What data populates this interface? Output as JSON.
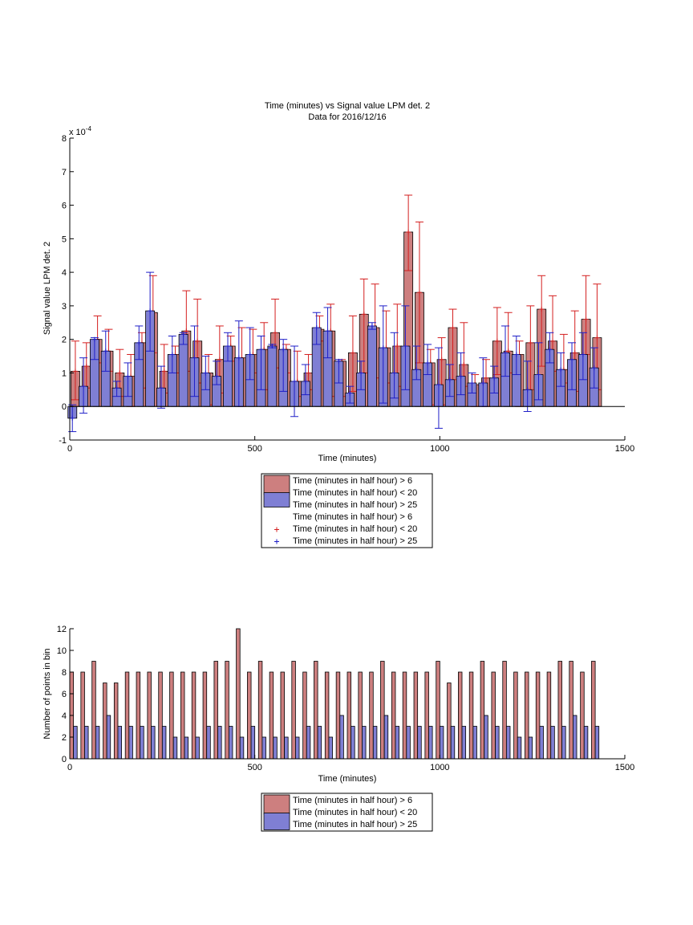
{
  "colors": {
    "red_fill": "#cd7f7f",
    "blue_fill": "#7f7fd4",
    "red_line": "#d41f1f",
    "blue_line": "#1f1fc8",
    "axis": "#000000"
  },
  "chart_data": [
    {
      "type": "bar",
      "title": "Time (minutes) vs Signal value LPM det. 2",
      "subtitle": "Data for 2016/12/16",
      "xlabel": "Time (minutes)",
      "ylabel": "Signal value LPM det. 2",
      "y_multiplier": "x 10",
      "y_exponent": "-4",
      "xlim": [
        0,
        1500
      ],
      "ylim": [
        -1,
        8
      ],
      "xticks": [
        0,
        500,
        1000,
        1500
      ],
      "yticks": [
        -1,
        0,
        1,
        2,
        3,
        4,
        5,
        6,
        7,
        8
      ],
      "grid": false,
      "legend_position": "bottom",
      "legend": [
        "Time (minutes in half hour) > 6",
        "Time (minutes in half hour) < 20",
        "Time (minutes in half hour) > 25",
        "Time (minutes in half hour) > 6",
        "Time (minutes in half hour) < 20",
        "Time (minutes in half hour) > 25"
      ],
      "red_x": [
        15,
        45,
        75,
        105,
        135,
        165,
        195,
        225,
        255,
        285,
        315,
        345,
        375,
        405,
        435,
        465,
        495,
        525,
        555,
        585,
        615,
        645,
        675,
        705,
        735,
        765,
        795,
        825,
        855,
        885,
        915,
        945,
        975,
        1005,
        1035,
        1065,
        1095,
        1125,
        1155,
        1185,
        1215,
        1245,
        1275,
        1305,
        1335,
        1365,
        1395,
        1425
      ],
      "red_values": [
        1.05,
        1.2,
        2.0,
        1.65,
        1.0,
        0.9,
        1.9,
        2.8,
        1.05,
        1.55,
        2.25,
        1.95,
        1.0,
        1.4,
        1.8,
        1.45,
        1.55,
        1.7,
        2.2,
        1.7,
        0.75,
        1.0,
        2.3,
        2.25,
        1.35,
        1.6,
        2.75,
        2.35,
        1.75,
        1.8,
        5.2,
        3.4,
        1.3,
        1.4,
        2.35,
        1.25,
        0.65,
        0.85,
        1.95,
        1.65,
        1.55,
        1.9,
        2.9,
        1.95,
        1.1,
        1.6,
        2.6,
        2.05
      ],
      "red_err_low": [
        0.2,
        0.55,
        1.3,
        1.05,
        0.3,
        0.0,
        0.55,
        1.6,
        0.4,
        1.0,
        1.05,
        0.7,
        0.05,
        0.4,
        1.35,
        0.0,
        1.0,
        0.5,
        1.15,
        1.0,
        0.3,
        0.5,
        1.95,
        0.3,
        0.3,
        0.45,
        1.0,
        0.85,
        0.7,
        0.6,
        4.05,
        1.3,
        0.05,
        0.05,
        0.8,
        0.6,
        0.0,
        0.0,
        0.95,
        1.0,
        0.0,
        0.5,
        1.2,
        1.05,
        0.7,
        0.45,
        1.55,
        0.5
      ],
      "red_err_high": [
        1.95,
        1.9,
        2.7,
        2.3,
        1.7,
        1.55,
        2.2,
        3.9,
        1.85,
        1.8,
        3.45,
        3.2,
        1.55,
        2.4,
        2.1,
        2.35,
        2.3,
        2.5,
        3.2,
        1.85,
        1.65,
        1.55,
        2.7,
        3.05,
        1.4,
        2.7,
        3.8,
        3.65,
        2.85,
        3.05,
        6.3,
        5.5,
        1.7,
        2.05,
        2.9,
        2.5,
        0.95,
        1.4,
        2.95,
        2.8,
        1.95,
        3.0,
        3.9,
        3.3,
        2.15,
        2.85,
        3.9,
        3.65
      ],
      "blue_x": [
        7,
        37,
        67,
        97,
        127,
        157,
        187,
        217,
        247,
        277,
        307,
        337,
        367,
        397,
        427,
        457,
        487,
        517,
        547,
        577,
        607,
        637,
        667,
        697,
        727,
        757,
        787,
        817,
        847,
        877,
        907,
        937,
        967,
        997,
        1027,
        1057,
        1087,
        1117,
        1147,
        1177,
        1207,
        1237,
        1267,
        1297,
        1327,
        1357,
        1387,
        1417
      ],
      "blue_values": [
        -0.35,
        0.6,
        2.0,
        1.65,
        0.55,
        0.9,
        1.9,
        2.85,
        0.55,
        1.55,
        2.15,
        1.45,
        1.0,
        0.9,
        1.8,
        1.45,
        1.55,
        1.7,
        1.8,
        1.7,
        0.75,
        0.75,
        2.35,
        2.25,
        1.35,
        0.4,
        1.0,
        2.4,
        1.75,
        1.0,
        1.8,
        1.1,
        1.3,
        0.65,
        0.8,
        0.9,
        0.7,
        0.7,
        0.85,
        1.6,
        1.55,
        0.5,
        0.95,
        1.7,
        1.1,
        1.4,
        1.55,
        1.15
      ],
      "blue_err_low": [
        -0.75,
        -0.2,
        1.4,
        1.05,
        0.3,
        0.3,
        1.4,
        1.65,
        -0.05,
        1.0,
        1.85,
        0.3,
        0.5,
        0.65,
        1.35,
        0.0,
        0.8,
        0.5,
        1.75,
        0.45,
        -0.3,
        0.35,
        1.85,
        1.45,
        0.7,
        0.1,
        0.5,
        2.3,
        0.1,
        0.25,
        0.5,
        0.8,
        0.95,
        -0.65,
        0.3,
        0.35,
        0.4,
        0.0,
        0.4,
        0.9,
        0.95,
        -0.15,
        0.2,
        1.3,
        0.6,
        0.5,
        0.8,
        0.55
      ],
      "blue_err_high": [
        0.05,
        1.45,
        2.05,
        2.25,
        0.75,
        1.3,
        2.4,
        4.0,
        1.2,
        2.1,
        2.2,
        2.4,
        1.5,
        1.35,
        2.2,
        2.55,
        2.35,
        2.1,
        1.85,
        2.0,
        1.8,
        1.25,
        2.8,
        2.95,
        1.4,
        0.6,
        1.35,
        2.5,
        3.0,
        2.2,
        3.0,
        1.8,
        1.85,
        1.75,
        1.25,
        1.6,
        1.0,
        1.45,
        1.2,
        2.4,
        2.1,
        1.35,
        1.9,
        2.2,
        1.6,
        1.9,
        2.2,
        1.75
      ]
    },
    {
      "type": "bar",
      "title": "",
      "xlabel": "Time (minutes)",
      "ylabel": "Number of points in bin",
      "xlim": [
        0,
        1500
      ],
      "ylim": [
        0,
        12
      ],
      "xticks": [
        0,
        500,
        1000,
        1500
      ],
      "yticks": [
        0,
        2,
        4,
        6,
        8,
        10,
        12
      ],
      "grid": false,
      "legend_position": "bottom",
      "legend": [
        "Time (minutes in half hour) > 6",
        "Time (minutes in half hour) < 20",
        "Time (minutes in half hour) > 25"
      ],
      "red_x": [
        5,
        35,
        65,
        95,
        125,
        155,
        185,
        215,
        245,
        275,
        305,
        335,
        365,
        395,
        425,
        455,
        485,
        515,
        545,
        575,
        605,
        635,
        665,
        695,
        725,
        755,
        785,
        815,
        845,
        875,
        905,
        935,
        965,
        995,
        1025,
        1055,
        1085,
        1115,
        1145,
        1175,
        1205,
        1235,
        1265,
        1295,
        1325,
        1355,
        1385,
        1415
      ],
      "red_values": [
        8,
        8,
        9,
        7,
        7,
        8,
        8,
        8,
        8,
        8,
        8,
        8,
        8,
        9,
        9,
        12,
        8,
        9,
        8,
        8,
        9,
        8,
        9,
        8,
        8,
        8,
        8,
        8,
        9,
        8,
        8,
        8,
        8,
        9,
        7,
        8,
        8,
        9,
        8,
        9,
        8,
        8,
        8,
        8,
        9,
        9,
        8,
        9
      ],
      "blue_x": [
        15,
        45,
        75,
        105,
        135,
        165,
        195,
        225,
        255,
        285,
        315,
        345,
        375,
        405,
        435,
        465,
        495,
        525,
        555,
        585,
        615,
        645,
        675,
        705,
        735,
        765,
        795,
        825,
        855,
        885,
        915,
        945,
        975,
        1005,
        1035,
        1065,
        1095,
        1125,
        1155,
        1185,
        1215,
        1245,
        1275,
        1305,
        1335,
        1365,
        1395,
        1425
      ],
      "blue_values": [
        3,
        3,
        3,
        4,
        3,
        3,
        3,
        3,
        3,
        2,
        2,
        2,
        3,
        3,
        3,
        2,
        3,
        2,
        2,
        2,
        2,
        3,
        3,
        2,
        4,
        3,
        3,
        3,
        4,
        3,
        3,
        3,
        3,
        3,
        3,
        3,
        3,
        4,
        3,
        3,
        2,
        2,
        3,
        3,
        3,
        4,
        3,
        3
      ]
    }
  ]
}
